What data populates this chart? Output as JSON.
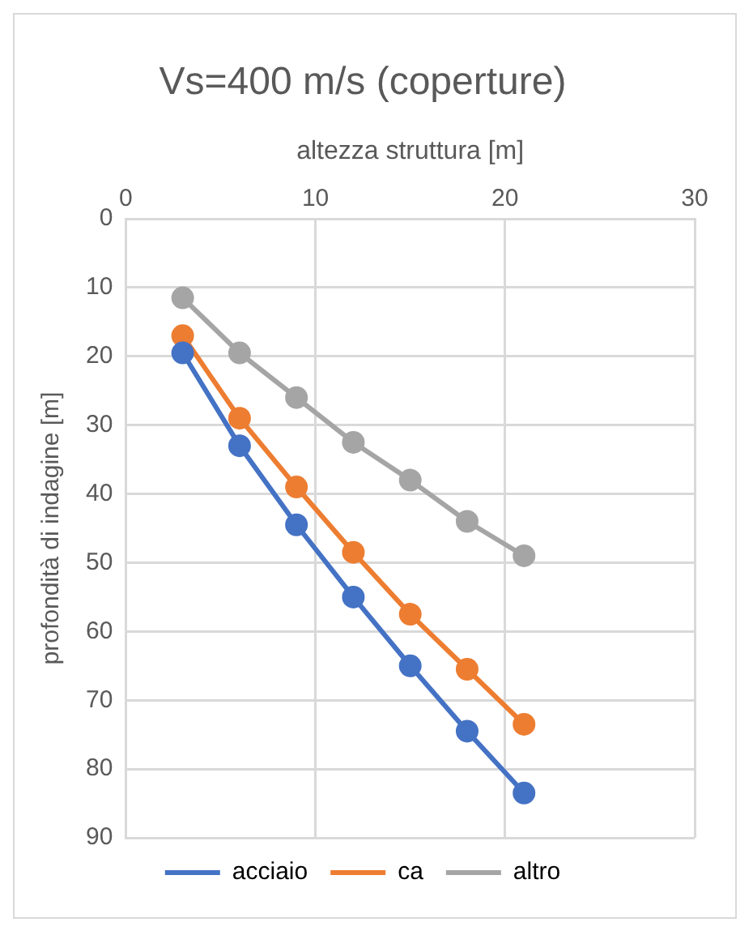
{
  "chart_data": {
    "type": "line",
    "title": "Vs=400 m/s (coperture)",
    "xlabel": "altezza struttura [m]",
    "ylabel": "profondità di indagine [m]",
    "x": [
      3,
      6,
      9,
      12,
      15,
      18,
      21
    ],
    "series": [
      {
        "name": "acciaio",
        "color": "#4472c4",
        "values": [
          19.5,
          33,
          44.5,
          55,
          65,
          74.5,
          83.5
        ]
      },
      {
        "name": "ca",
        "color": "#ed7d31",
        "values": [
          17,
          29,
          39,
          48.5,
          57.5,
          65.5,
          73.5
        ]
      },
      {
        "name": "altro",
        "color": "#a5a5a5",
        "values": [
          11.5,
          19.5,
          26,
          32.5,
          38,
          44,
          49
        ]
      }
    ],
    "xlim": [
      0,
      30
    ],
    "xticks": [
      0,
      10,
      20,
      30
    ],
    "ylim": [
      90,
      0
    ],
    "yticks": [
      0,
      10,
      20,
      30,
      40,
      50,
      60,
      70,
      80,
      90
    ],
    "grid": true,
    "legend": "bottom",
    "marker": "circle",
    "line_style": "solid"
  }
}
